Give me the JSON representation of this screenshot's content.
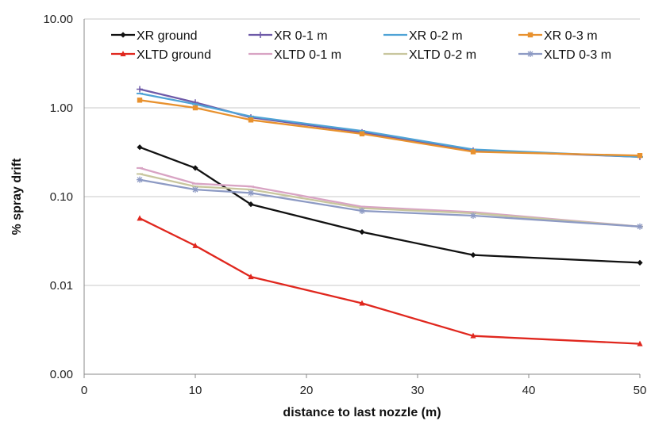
{
  "chart_data": {
    "type": "line",
    "xlabel": "distance to last nozzle (m)",
    "ylabel": "% spray drift",
    "y_scale": "log",
    "xlim": [
      0,
      50
    ],
    "ylim": [
      0.001,
      10
    ],
    "x_ticks": [
      0,
      10,
      20,
      30,
      40,
      50
    ],
    "x_tick_labels": [
      "0",
      "10",
      "20",
      "30",
      "40",
      "50"
    ],
    "y_ticks": [
      0.001,
      0.01,
      0.1,
      1,
      10
    ],
    "y_tick_labels": [
      "0.00",
      "0.01",
      "0.10",
      "1.00",
      "10.00"
    ],
    "grid": "horizontal",
    "legend_position": "top",
    "x": [
      5,
      10,
      15,
      25,
      35,
      50
    ],
    "series": [
      {
        "name": "XR ground",
        "color": "#111111",
        "marker": "diamond",
        "values": [
          0.36,
          0.21,
          0.082,
          0.04,
          0.022,
          0.018
        ]
      },
      {
        "name": "XR 0-1 m",
        "color": "#6e5aa8",
        "marker": "plus",
        "values": [
          1.62,
          1.15,
          0.78,
          0.53,
          0.33,
          0.28
        ]
      },
      {
        "name": "XR 0-2 m",
        "color": "#4fa3d6",
        "marker": "dash",
        "values": [
          1.45,
          1.1,
          0.8,
          0.55,
          0.34,
          0.28
        ]
      },
      {
        "name": "XR 0-3 m",
        "color": "#e8912e",
        "marker": "square",
        "values": [
          1.22,
          1.0,
          0.73,
          0.51,
          0.32,
          0.29
        ]
      },
      {
        "name": "XLTD ground",
        "color": "#e0271e",
        "marker": "triangle",
        "values": [
          0.057,
          0.028,
          0.0125,
          0.0063,
          0.0027,
          0.0022
        ]
      },
      {
        "name": "XLTD 0-1 m",
        "color": "#d8a3c3",
        "marker": "dash",
        "values": [
          0.21,
          0.14,
          0.13,
          0.077,
          0.067,
          0.046
        ]
      },
      {
        "name": "XLTD 0-2 m",
        "color": "#c8c69e",
        "marker": "dash",
        "values": [
          0.18,
          0.13,
          0.12,
          0.074,
          0.065,
          0.046
        ]
      },
      {
        "name": "XLTD 0-3 m",
        "color": "#8d9ac4",
        "marker": "star",
        "values": [
          0.155,
          0.12,
          0.11,
          0.069,
          0.061,
          0.046
        ]
      }
    ]
  }
}
